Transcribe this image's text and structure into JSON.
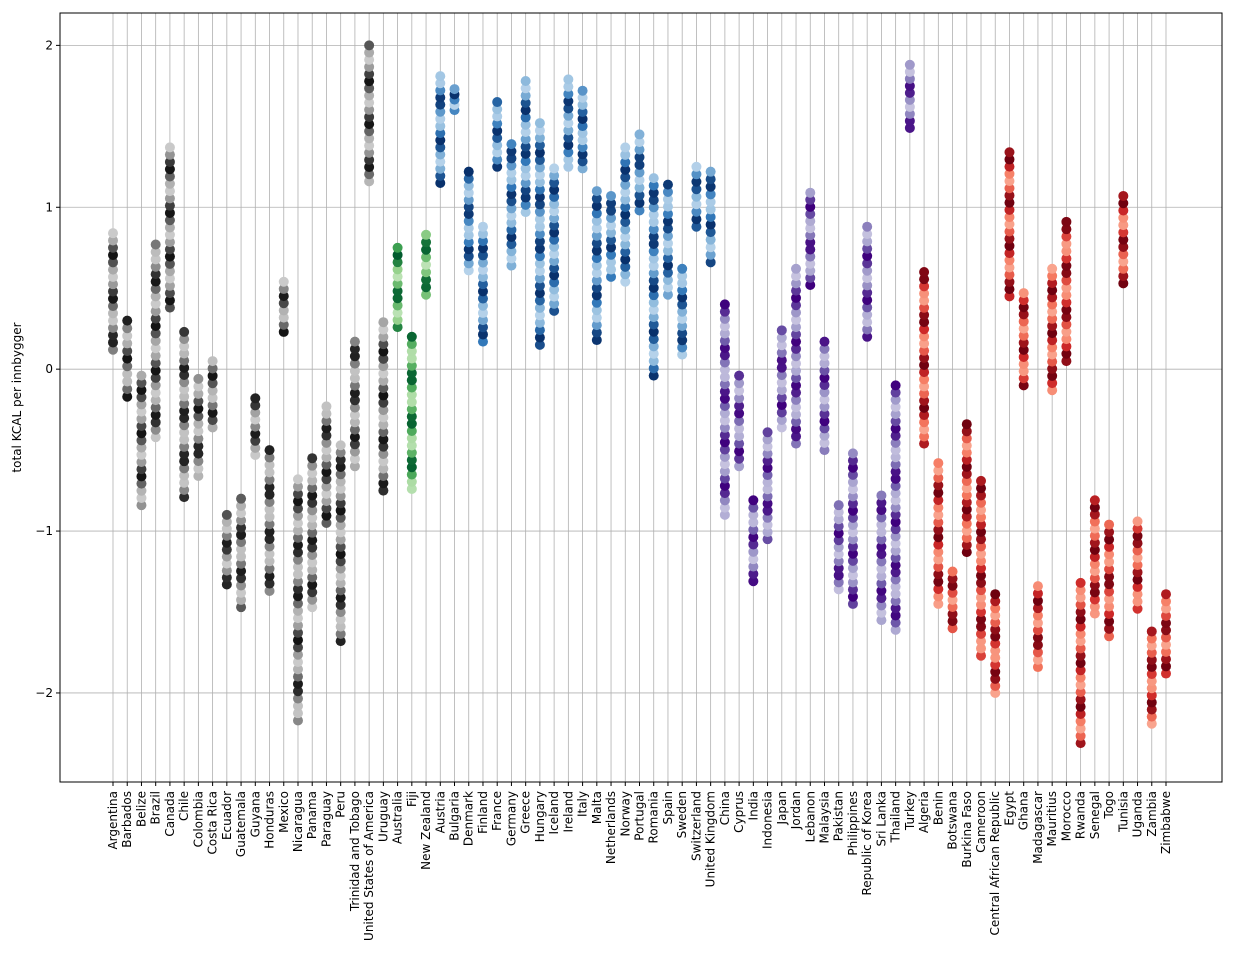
{
  "chart_data": {
    "type": "scatter",
    "ylabel": "total KCAL per innbygger",
    "ylim": [
      -2.55,
      2.2
    ],
    "yticks": [
      {
        "value": -2,
        "label": "−2"
      },
      {
        "value": -1,
        "label": "−1"
      },
      {
        "value": 0,
        "label": "0"
      },
      {
        "value": 1,
        "label": "1"
      },
      {
        "value": 2,
        "label": "2"
      }
    ],
    "grid": true,
    "countries": [
      {
        "name": "Argentina",
        "group": "americas",
        "min": 0.12,
        "max": 0.84
      },
      {
        "name": "Barbados",
        "group": "americas",
        "min": -0.17,
        "max": 0.3
      },
      {
        "name": "Belize",
        "group": "americas",
        "min": -0.84,
        "max": -0.04
      },
      {
        "name": "Brazil",
        "group": "americas",
        "min": -0.42,
        "max": 0.77
      },
      {
        "name": "Canada",
        "group": "americas",
        "min": 0.38,
        "max": 1.37
      },
      {
        "name": "Chile",
        "group": "americas",
        "min": -0.79,
        "max": 0.23
      },
      {
        "name": "Colombia",
        "group": "americas",
        "min": -0.66,
        "max": -0.06
      },
      {
        "name": "Costa Rica",
        "group": "americas",
        "min": -0.36,
        "max": 0.05
      },
      {
        "name": "Ecuador",
        "group": "americas",
        "min": -1.33,
        "max": -0.9
      },
      {
        "name": "Guatemala",
        "group": "americas",
        "min": -1.47,
        "max": -0.8
      },
      {
        "name": "Guyana",
        "group": "americas",
        "min": -0.53,
        "max": -0.18
      },
      {
        "name": "Honduras",
        "group": "americas",
        "min": -1.37,
        "max": -0.5
      },
      {
        "name": "Mexico",
        "group": "americas",
        "min": 0.23,
        "max": 0.54
      },
      {
        "name": "Nicaragua",
        "group": "americas",
        "min": -2.17,
        "max": -0.68
      },
      {
        "name": "Panama",
        "group": "americas",
        "min": -1.47,
        "max": -0.55
      },
      {
        "name": "Paraguay",
        "group": "americas",
        "min": -0.95,
        "max": -0.23
      },
      {
        "name": "Peru",
        "group": "americas",
        "min": -1.68,
        "max": -0.47
      },
      {
        "name": "Trinidad and Tobago",
        "group": "americas",
        "min": -0.6,
        "max": 0.17
      },
      {
        "name": "United States of America",
        "group": "americas",
        "min": 1.16,
        "max": 2.0
      },
      {
        "name": "Uruguay",
        "group": "americas",
        "min": -0.75,
        "max": 0.29
      },
      {
        "name": "Australia",
        "group": "oceania",
        "min": 0.26,
        "max": 0.75
      },
      {
        "name": "Fiji",
        "group": "oceania",
        "min": -0.74,
        "max": 0.2
      },
      {
        "name": "New Zealand",
        "group": "oceania",
        "min": 0.46,
        "max": 0.83
      },
      {
        "name": "Austria",
        "group": "europe",
        "min": 1.15,
        "max": 1.81
      },
      {
        "name": "Bulgaria",
        "group": "europe",
        "min": 1.6,
        "max": 1.73
      },
      {
        "name": "Denmark",
        "group": "europe",
        "min": 0.61,
        "max": 1.22
      },
      {
        "name": "Finland",
        "group": "europe",
        "min": 0.17,
        "max": 0.88
      },
      {
        "name": "France",
        "group": "europe",
        "min": 1.25,
        "max": 1.65
      },
      {
        "name": "Germany",
        "group": "europe",
        "min": 0.64,
        "max": 1.39
      },
      {
        "name": "Greece",
        "group": "europe",
        "min": 0.97,
        "max": 1.78
      },
      {
        "name": "Hungary",
        "group": "europe",
        "min": 0.15,
        "max": 1.52
      },
      {
        "name": "Iceland",
        "group": "europe",
        "min": 0.36,
        "max": 1.24
      },
      {
        "name": "Ireland",
        "group": "europe",
        "min": 1.25,
        "max": 1.79
      },
      {
        "name": "Italy",
        "group": "europe",
        "min": 1.24,
        "max": 1.72
      },
      {
        "name": "Malta",
        "group": "europe",
        "min": 0.18,
        "max": 1.1
      },
      {
        "name": "Netherlands",
        "group": "europe",
        "min": 0.57,
        "max": 1.07
      },
      {
        "name": "Norway",
        "group": "europe",
        "min": 0.54,
        "max": 1.37
      },
      {
        "name": "Portugal",
        "group": "europe",
        "min": 0.98,
        "max": 1.45
      },
      {
        "name": "Romania",
        "group": "europe",
        "min": -0.04,
        "max": 1.18
      },
      {
        "name": "Spain",
        "group": "europe",
        "min": 0.46,
        "max": 1.14
      },
      {
        "name": "Sweden",
        "group": "europe",
        "min": 0.09,
        "max": 0.62
      },
      {
        "name": "Switzerland",
        "group": "europe",
        "min": 0.88,
        "max": 1.25
      },
      {
        "name": "United Kingdom",
        "group": "europe",
        "min": 0.66,
        "max": 1.22
      },
      {
        "name": "China",
        "group": "asia",
        "min": -0.9,
        "max": 0.4
      },
      {
        "name": "Cyprus",
        "group": "asia",
        "min": -0.6,
        "max": -0.04
      },
      {
        "name": "India",
        "group": "asia",
        "min": -1.31,
        "max": -0.81
      },
      {
        "name": "Indonesia",
        "group": "asia",
        "min": -1.05,
        "max": -0.39
      },
      {
        "name": "Japan",
        "group": "asia",
        "min": -0.36,
        "max": 0.24
      },
      {
        "name": "Jordan",
        "group": "asia",
        "min": -0.46,
        "max": 0.62
      },
      {
        "name": "Lebanon",
        "group": "asia",
        "min": 0.52,
        "max": 1.09
      },
      {
        "name": "Malaysia",
        "group": "asia",
        "min": -0.5,
        "max": 0.17
      },
      {
        "name": "Pakistan",
        "group": "asia",
        "min": -1.36,
        "max": -0.84
      },
      {
        "name": "Philippines",
        "group": "asia",
        "min": -1.45,
        "max": -0.52
      },
      {
        "name": "Republic of Korea",
        "group": "asia",
        "min": 0.2,
        "max": 0.88
      },
      {
        "name": "Sri Lanka",
        "group": "asia",
        "min": -1.55,
        "max": -0.78
      },
      {
        "name": "Thailand",
        "group": "asia",
        "min": -1.61,
        "max": -0.1
      },
      {
        "name": "Turkey",
        "group": "asia",
        "min": 1.49,
        "max": 1.88
      },
      {
        "name": "Algeria",
        "group": "africa",
        "min": -0.46,
        "max": 0.6
      },
      {
        "name": "Benin",
        "group": "africa",
        "min": -1.45,
        "max": -0.58
      },
      {
        "name": "Botswana",
        "group": "africa",
        "min": -1.6,
        "max": -1.25
      },
      {
        "name": "Burkina Faso",
        "group": "africa",
        "min": -1.13,
        "max": -0.34
      },
      {
        "name": "Cameroon",
        "group": "africa",
        "min": -1.77,
        "max": -0.69
      },
      {
        "name": "Central African Republic",
        "group": "africa",
        "min": -2.0,
        "max": -1.39
      },
      {
        "name": "Egypt",
        "group": "africa",
        "min": 0.45,
        "max": 1.34
      },
      {
        "name": "Ghana",
        "group": "africa",
        "min": -0.1,
        "max": 0.47
      },
      {
        "name": "Madagascar",
        "group": "africa",
        "min": -1.84,
        "max": -1.34
      },
      {
        "name": "Mauritius",
        "group": "africa",
        "min": -0.13,
        "max": 0.62
      },
      {
        "name": "Morocco",
        "group": "africa",
        "min": 0.05,
        "max": 0.91
      },
      {
        "name": "Rwanda",
        "group": "africa",
        "min": -2.31,
        "max": -1.32
      },
      {
        "name": "Senegal",
        "group": "africa",
        "min": -1.51,
        "max": -0.81
      },
      {
        "name": "Togo",
        "group": "africa",
        "min": -1.65,
        "max": -0.96
      },
      {
        "name": "Tunisia",
        "group": "africa",
        "min": 0.53,
        "max": 1.07
      },
      {
        "name": "Uganda",
        "group": "africa",
        "min": -1.48,
        "max": -0.94
      },
      {
        "name": "Zambia",
        "group": "africa",
        "min": -2.19,
        "max": -1.62
      },
      {
        "name": "Zimbabwe",
        "group": "africa",
        "min": -1.88,
        "max": -1.39
      }
    ],
    "group_colormaps": {
      "americas": "Greys",
      "oceania": "Greens",
      "europe": "Blues",
      "asia": "Purples",
      "africa": "Reds"
    },
    "colors": {
      "grid": "#b0b0b0",
      "axis": "#000000",
      "background": "#ffffff"
    }
  }
}
